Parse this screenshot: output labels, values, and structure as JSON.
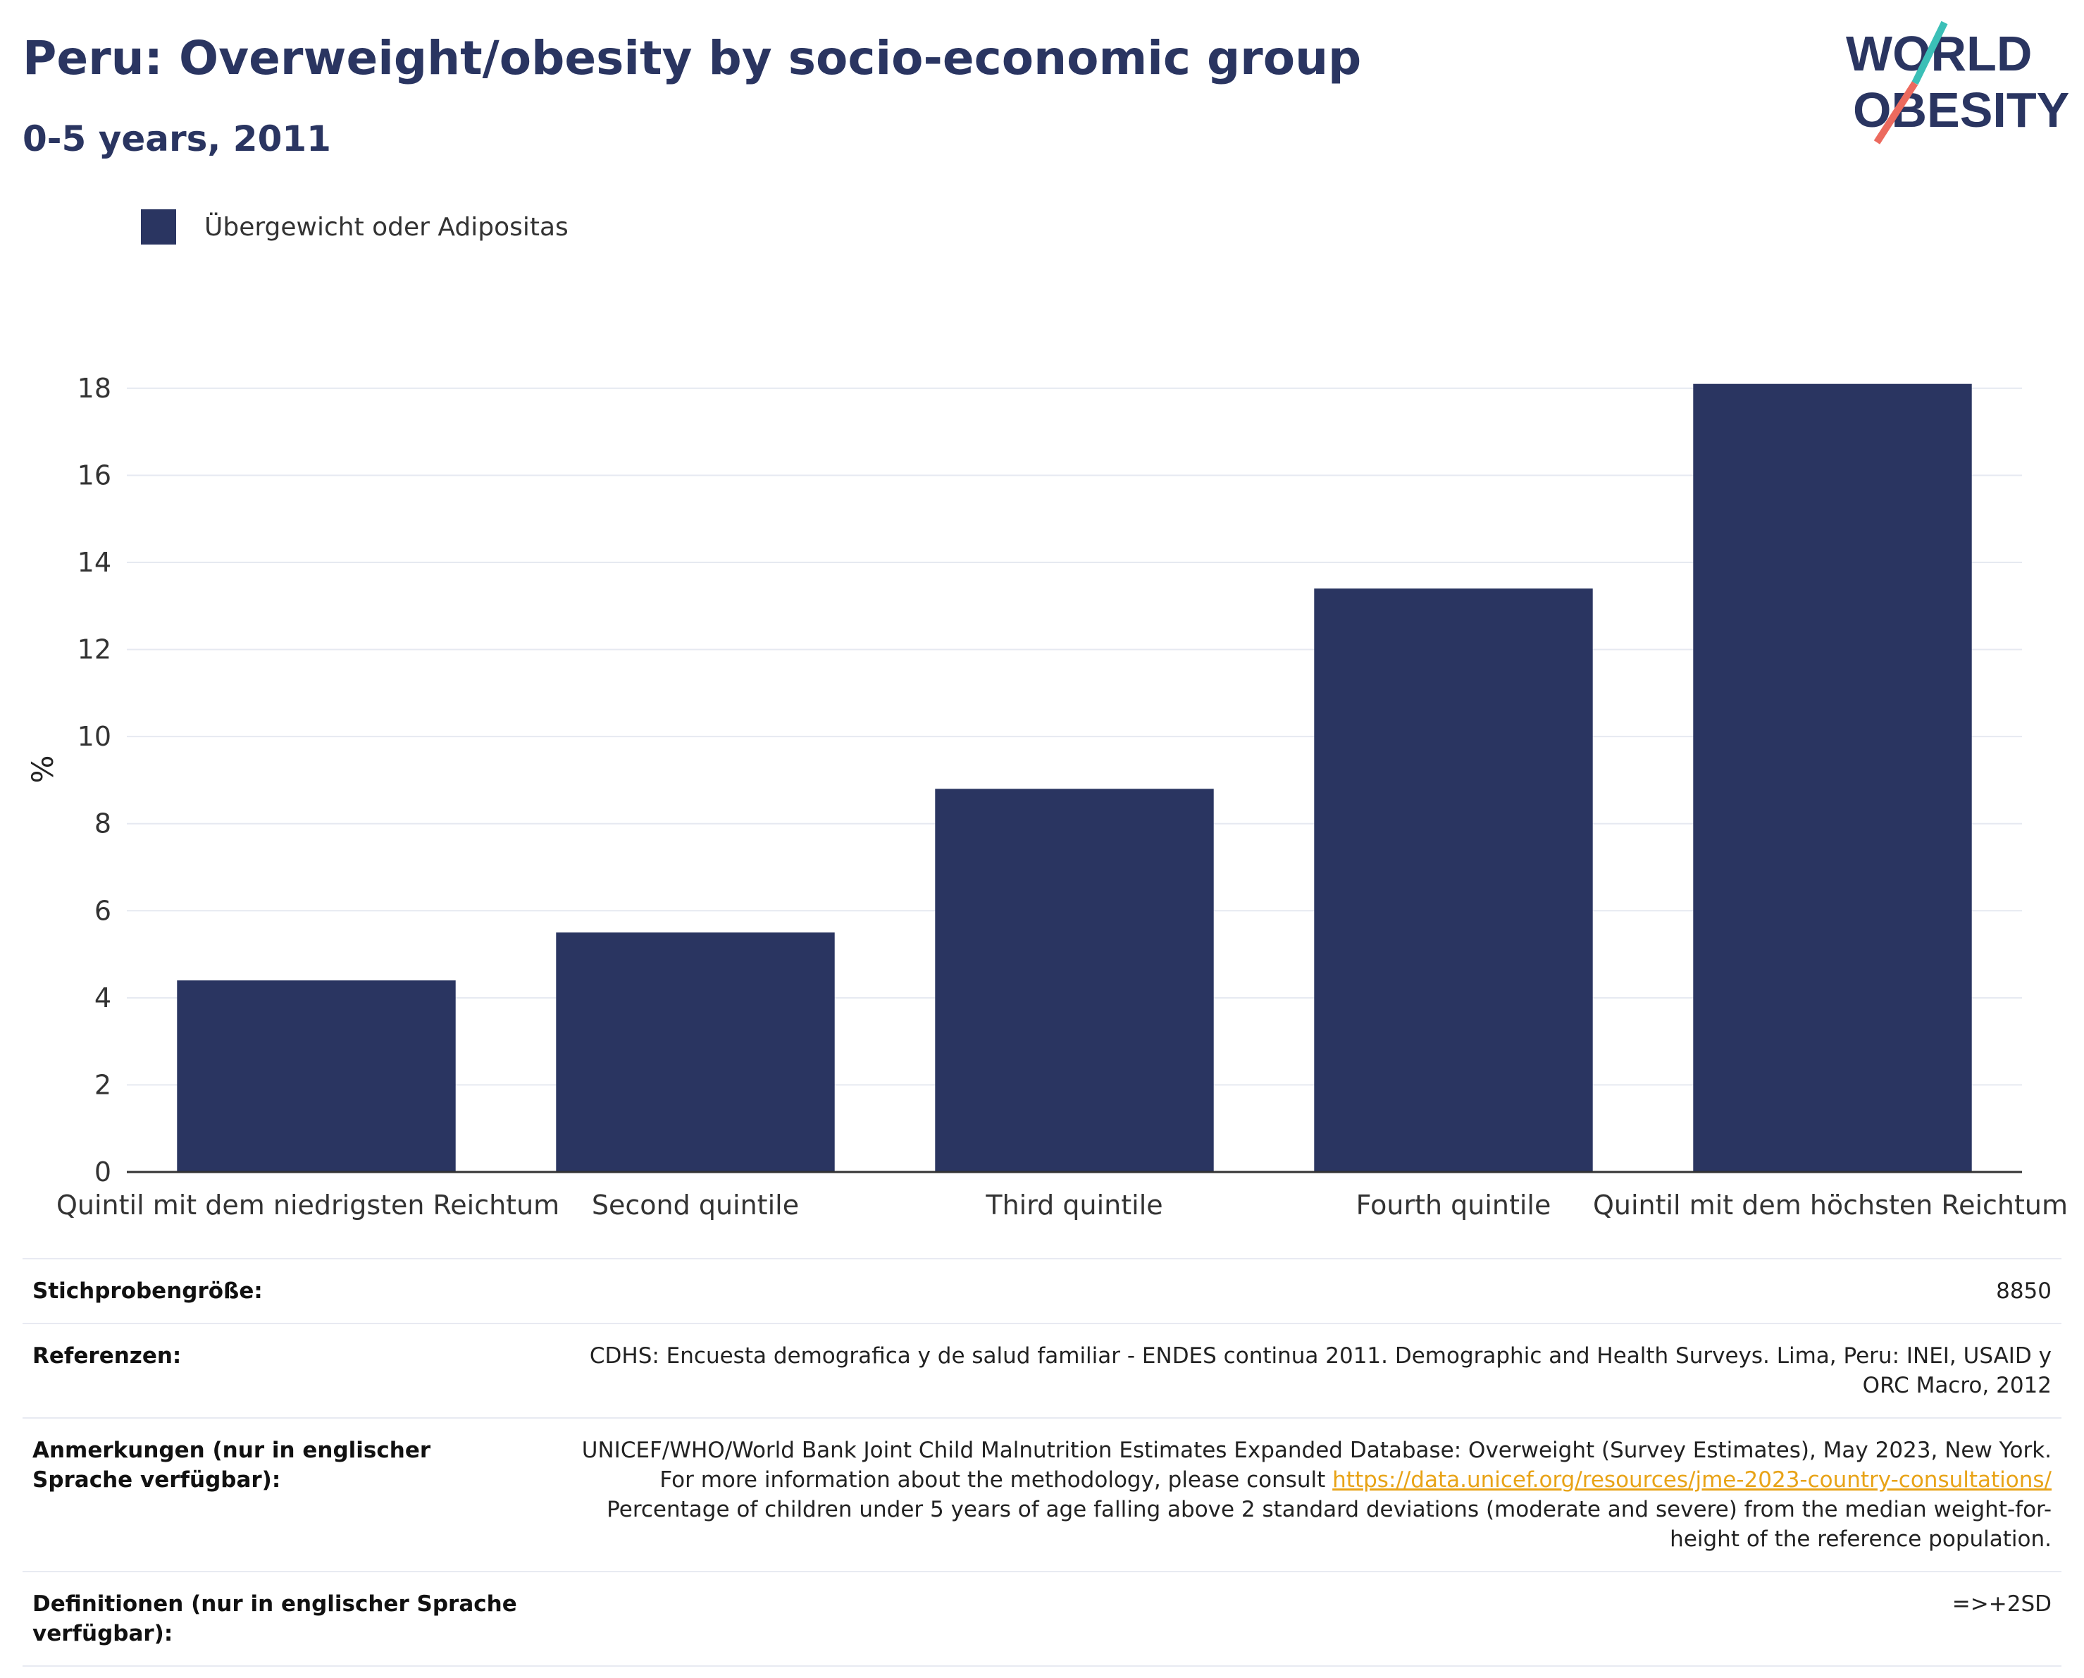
{
  "header": {
    "title": "Peru: Overweight/obesity by socio-economic group",
    "subtitle": "0-5 years, 2011"
  },
  "logo": {
    "line1": "WORLD",
    "line2": "OBESITY"
  },
  "legend": {
    "label": "Übergewicht oder Adipositas",
    "color": "#2a3561"
  },
  "chart_data": {
    "type": "bar",
    "categories": [
      "Quintil mit dem niedrigsten Reichtum",
      "Second quintile",
      "Third quintile",
      "Fourth quintile",
      "Quintil mit dem höchsten Reichtum"
    ],
    "series": [
      {
        "name": "Übergewicht oder Adipositas",
        "values": [
          4.4,
          5.5,
          8.8,
          13.4,
          18.1
        ],
        "color": "#2a3561"
      }
    ],
    "ylabel": "%",
    "ylim": [
      0,
      18.5
    ],
    "yticks": [
      0,
      2,
      4,
      6,
      8,
      10,
      12,
      14,
      16,
      18
    ],
    "grid": true,
    "legend_position": "top-left"
  },
  "info": {
    "sample_size_label": "Stichprobengröße:",
    "sample_size_value": "8850",
    "references_label": "Referenzen:",
    "references_value": "CDHS: Encuesta demografica y de salud familiar - ENDES continua 2011. Demographic and Health Surveys. Lima, Peru: INEI, USAID y ORC Macro, 2012",
    "notes_label": "Anmerkungen (nur in englischer Sprache verfügbar):",
    "notes_text_1": "UNICEF/WHO/World Bank Joint Child Malnutrition Estimates Expanded Database: Overweight (Survey Estimates), May 2023, New York. For more information about the methodology, please consult ",
    "notes_link": "https://data.unicef.org/resources/jme-2023-country-consultations/",
    "notes_text_2": " Percentage of children under 5 years of age falling above 2 standard deviations (moderate and severe) from the median weight-for-height of the reference population.",
    "definitions_label": "Definitionen (nur in englischer Sprache verfügbar):",
    "definitions_value": "=>+2SD"
  }
}
